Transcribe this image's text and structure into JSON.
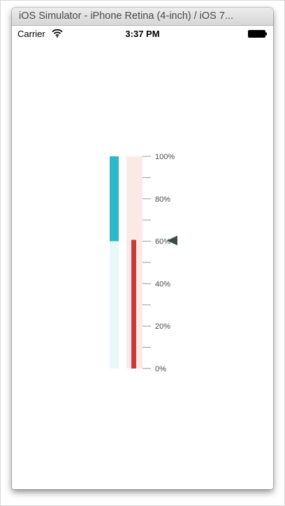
{
  "window": {
    "title": "iOS Simulator - iPhone Retina (4-inch) / iOS 7..."
  },
  "status_bar": {
    "carrier": "Carrier",
    "time": "3:37 PM",
    "icons": [
      "wifi-icon",
      "battery-icon"
    ]
  },
  "gauge": {
    "ticks": [
      "100%",
      "80%",
      "60%",
      "40%",
      "20%",
      "0%"
    ],
    "range_value_percent": 60,
    "progress_value_percent": 60,
    "pointer_value_percent": 60,
    "colors": {
      "range_fill": "#2cb8c9",
      "range_track": "#e9f7f9",
      "progress_fill": "#c93b3b",
      "progress_track": "#fbe9e7",
      "tick_line": "#9a9a9a",
      "label": "#4a4a4a",
      "pointer": "#3d4a4b"
    }
  }
}
